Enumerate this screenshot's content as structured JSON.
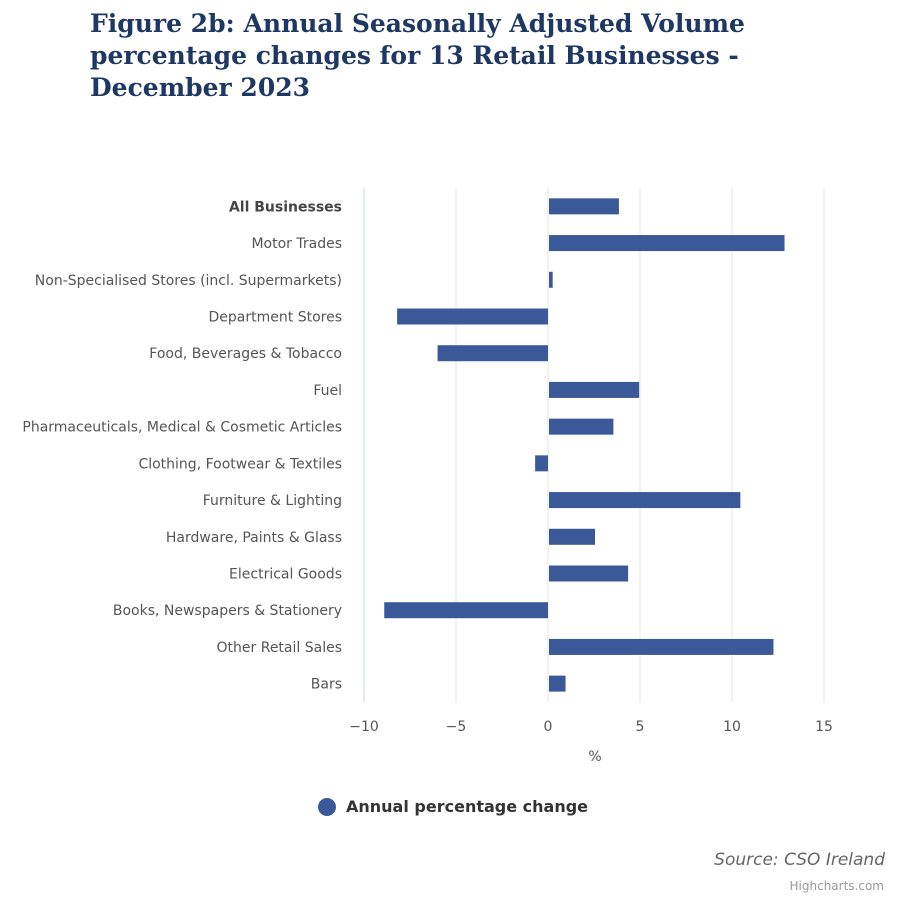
{
  "title": "Figure 2b: Annual Seasonally Adjusted Volume percentage changes for 13 Retail Businesses - December 2023",
  "chart_data": {
    "type": "bar",
    "orientation": "horizontal",
    "title": "Figure 2b: Annual Seasonally Adjusted Volume percentage changes for 13 Retail Businesses - December 2023",
    "categories": [
      "All Businesses",
      "Motor Trades",
      "Non-Specialised Stores (incl. Supermarkets)",
      "Department Stores",
      "Food, Beverages & Tobacco",
      "Fuel",
      "Pharmaceuticals, Medical & Cosmetic Articles",
      "Clothing, Footwear & Textiles",
      "Furniture & Lighting",
      "Hardware, Paints & Glass",
      "Electrical Goods",
      "Books, Newspapers & Stationery",
      "Other Retail Sales",
      "Bars"
    ],
    "bold_categories": [
      "All Businesses"
    ],
    "series": [
      {
        "name": "Annual percentage change",
        "color": "#3b5998",
        "values": [
          3.8,
          12.8,
          0.2,
          -8.2,
          -6.0,
          4.9,
          3.5,
          -0.7,
          10.4,
          2.5,
          4.3,
          -8.9,
          12.2,
          0.9
        ]
      }
    ],
    "xlabel": "%",
    "ylabel": "",
    "xlim": [
      -10,
      15
    ],
    "xticks": [
      -10,
      -5,
      0,
      5,
      10,
      15
    ],
    "grid": true,
    "legend_position": "bottom-center"
  },
  "source": "Source: CSO Ireland",
  "credits": "Highcharts.com"
}
